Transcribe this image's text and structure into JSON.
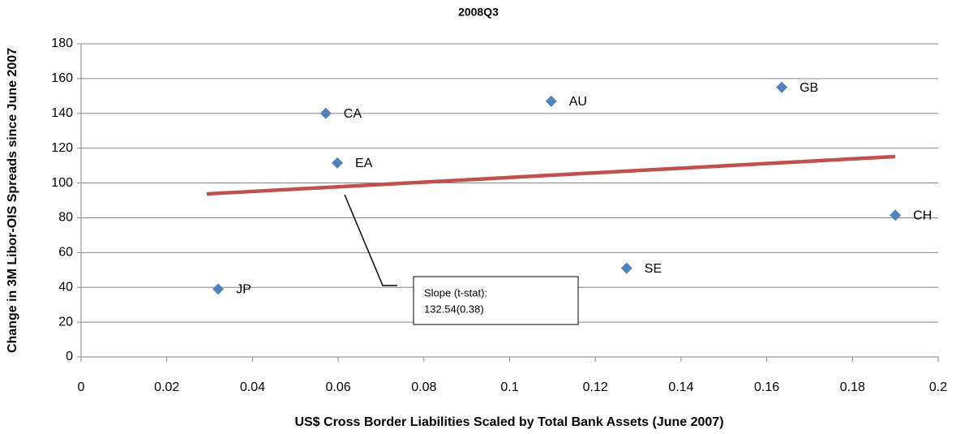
{
  "chart_data": {
    "type": "scatter",
    "title": "2008Q3",
    "x_label": "US$ Cross Border Liabilities Scaled by Total Bank Assets (June 2007)",
    "y_label": "Change in 3M Libor-OIS Spreads since June 2007",
    "series": [
      {
        "color": "#4f81bd",
        "x": [
          0.032,
          0.0571,
          0.0598,
          0.1097,
          0.1635,
          0.19,
          0.1273
        ],
        "values": [
          39,
          140,
          111.5,
          147,
          155,
          81.5,
          51
        ],
        "labels": [
          "JP",
          "CA",
          "EA",
          "AU",
          "GB",
          "CH",
          "SE"
        ]
      }
    ],
    "trendline": {
      "color": "#c0504d",
      "x": [
        0.0293,
        0.19
      ],
      "values": [
        93.7,
        115.2
      ]
    },
    "annotation": [
      "Slope (t-stat):",
      "132.54(0.38)"
    ],
    "xlim": [
      0,
      0.2
    ],
    "xticks": [
      0,
      0.02,
      0.04,
      0.06,
      0.08,
      0.1,
      0.12,
      0.14,
      0.16,
      0.18,
      0.2
    ],
    "ylim": [
      0,
      180
    ],
    "yticks": [
      0,
      20,
      40,
      60,
      80,
      100,
      120,
      140,
      160,
      180
    ],
    "grid": true
  }
}
